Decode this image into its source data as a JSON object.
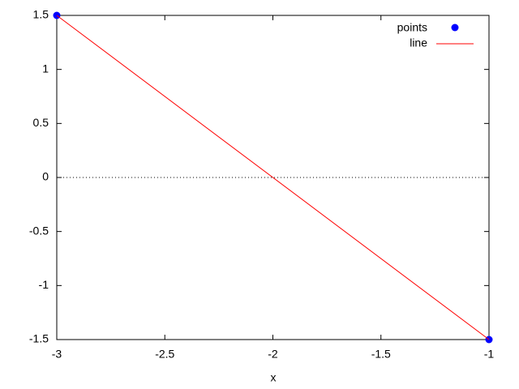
{
  "chart_data": {
    "type": "line",
    "xlabel": "x",
    "series": [
      {
        "name": "points",
        "style": "points",
        "color": "#0000ff",
        "x": [
          -3,
          -1
        ],
        "values": [
          1.5,
          -1.5
        ]
      },
      {
        "name": "line",
        "style": "lines",
        "color": "#ff0000",
        "x": [
          -3,
          -1
        ],
        "values": [
          1.5,
          -1.5
        ]
      }
    ],
    "xlim": [
      -3,
      -1
    ],
    "xticks": [
      -3,
      -2.5,
      -2,
      -1.5,
      -1
    ],
    "ylim": [
      -1.5,
      1.5
    ],
    "yticks": [
      -1.5,
      -1,
      -0.5,
      0,
      0.5,
      1,
      1.5
    ],
    "zero_axis": true,
    "legend": "top-right"
  }
}
